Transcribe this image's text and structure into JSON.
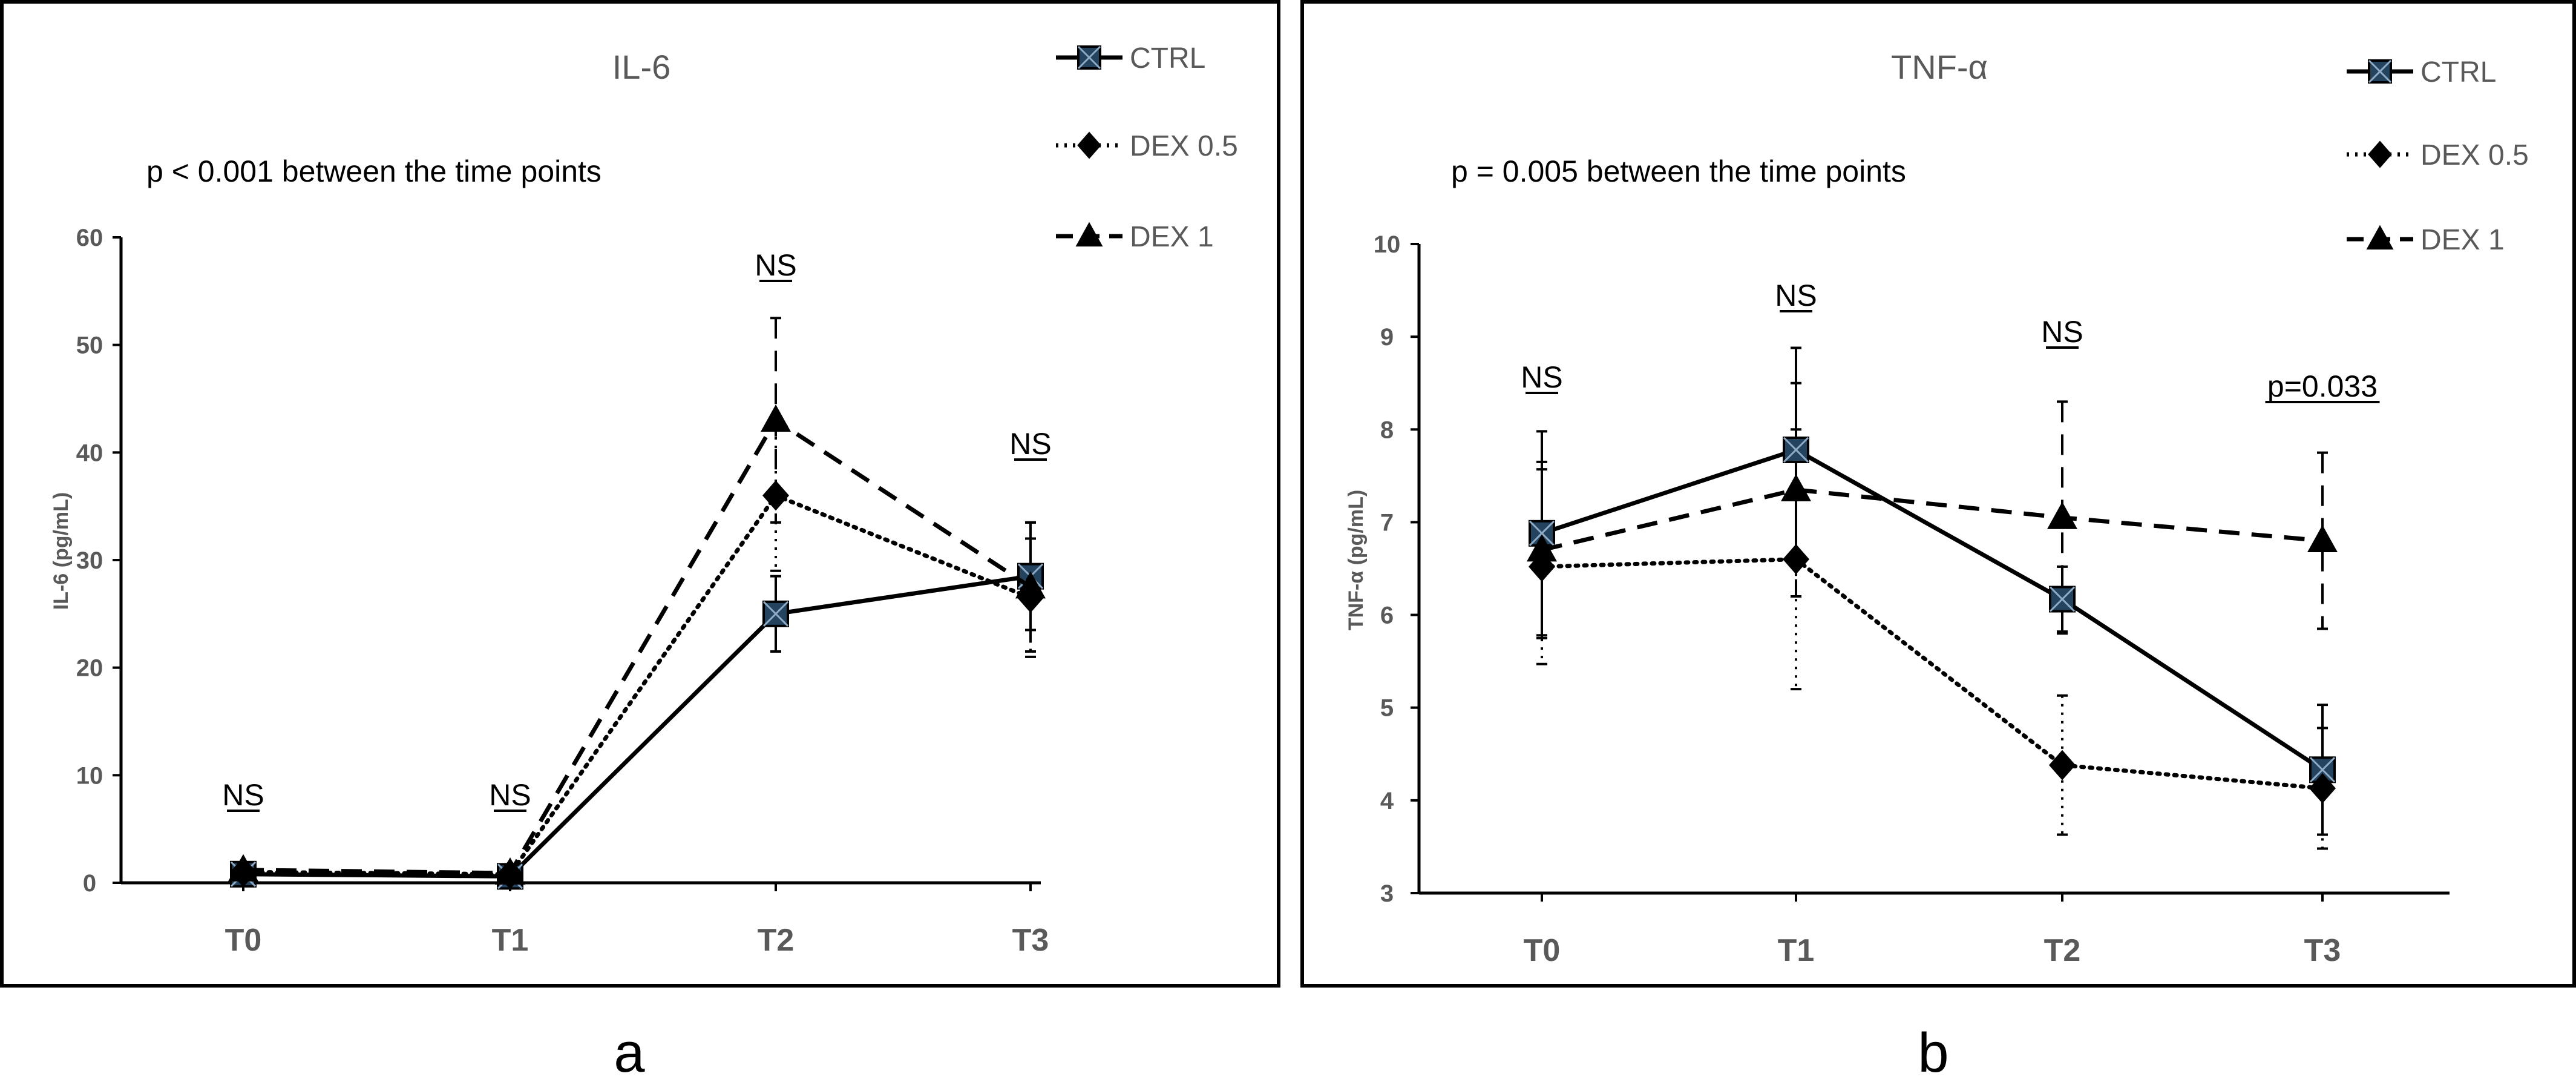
{
  "chart_data": [
    {
      "type": "line",
      "panel": "a",
      "title": "IL-6",
      "annotation": "p < 0.001 between the time points",
      "ylabel": "IL-6 (pg/mL)",
      "xlabel": "",
      "ylim": [
        0,
        60
      ],
      "yticks": [
        "0",
        "10",
        "20",
        "30",
        "40",
        "50",
        "60"
      ],
      "categories": [
        "T0",
        "T1",
        "T2",
        "T3"
      ],
      "significance": [
        "NS",
        "NS",
        "NS",
        "NS"
      ],
      "legend_position": "top-right",
      "series": [
        {
          "name": "CTRL",
          "marker": "square",
          "dash": "solid",
          "values": [
            0.8,
            0.6,
            25.0,
            28.5
          ],
          "err": [
            0.3,
            0.3,
            3.5,
            5.0
          ]
        },
        {
          "name": "DEX 0.5",
          "marker": "diamond",
          "dash": "dotted",
          "values": [
            1.0,
            0.8,
            36.0,
            26.5
          ],
          "err": [
            0.3,
            0.3,
            7.0,
            5.5
          ]
        },
        {
          "name": "DEX 1",
          "marker": "triangle",
          "dash": "dashed",
          "values": [
            1.2,
            0.9,
            43.0,
            27.5
          ],
          "err": [
            0.4,
            0.4,
            9.5,
            6.0
          ]
        }
      ]
    },
    {
      "type": "line",
      "panel": "b",
      "title": "TNF-α",
      "annotation": "p = 0.005 between the time points",
      "ylabel": "TNF-α (pg/mL)",
      "xlabel": "",
      "ylim": [
        3,
        10
      ],
      "yticks": [
        "3",
        "4",
        "5",
        "6",
        "7",
        "8",
        "9",
        "10"
      ],
      "categories": [
        "T0",
        "T1",
        "T2",
        "T3"
      ],
      "significance": [
        "NS",
        "NS",
        "NS",
        "p=0.033"
      ],
      "legend_position": "top-right",
      "series": [
        {
          "name": "CTRL",
          "marker": "square",
          "dash": "solid",
          "values": [
            6.88,
            7.78,
            6.17,
            4.33
          ],
          "err": [
            1.1,
            1.1,
            0.35,
            0.7
          ]
        },
        {
          "name": "DEX 0.5",
          "marker": "diamond",
          "dash": "dotted",
          "values": [
            6.52,
            6.6,
            4.38,
            4.13
          ],
          "err": [
            1.05,
            1.4,
            0.75,
            0.65
          ]
        },
        {
          "name": "DEX 1",
          "marker": "triangle",
          "dash": "dashed",
          "values": [
            6.7,
            7.35,
            7.05,
            6.8
          ],
          "err": [
            0.95,
            1.15,
            1.25,
            0.95
          ]
        }
      ]
    }
  ],
  "panel_letters": [
    "a",
    "b"
  ]
}
